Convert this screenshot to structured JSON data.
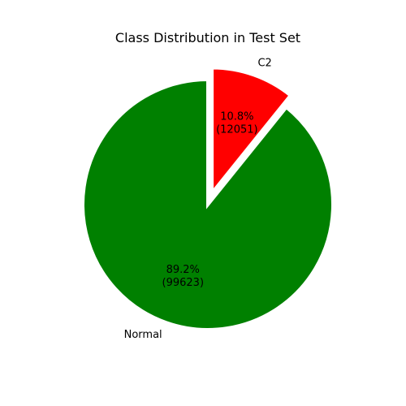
{
  "chart_data": {
    "type": "pie",
    "title": "Class Distribution in Test Set",
    "slices": [
      {
        "label": "C2",
        "value": 12051,
        "percent_label": "10.8%",
        "count_label": "(12051)",
        "color": "#ff0000",
        "exploded": true
      },
      {
        "label": "Normal",
        "value": 99623,
        "percent_label": "89.2%",
        "count_label": "(99623)",
        "color": "#008000",
        "exploded": false
      }
    ],
    "start_angle_deg": 90,
    "direction": "clockwise",
    "slice_edge_color": "#ffffff"
  }
}
